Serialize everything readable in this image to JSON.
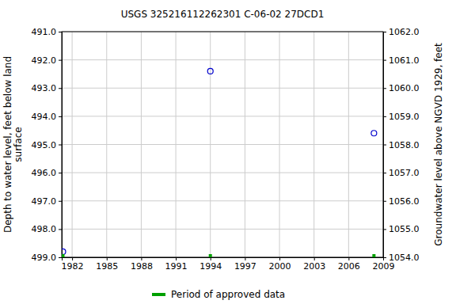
{
  "chart_data": {
    "type": "scatter",
    "title": "USGS 325216112262301 C-06-02 27DCD1",
    "y_label": "Depth to water level, feet below land\nsurface",
    "y2_label": "Groundwater level above NGVD 1929, feet",
    "x": [
      1981.2,
      1994.0,
      2008.2
    ],
    "series": [
      {
        "color": "#0000cc",
        "marker": "circle",
        "values": [
          498.8,
          492.4,
          494.6
        ]
      },
      {
        "name": "Period of approved data",
        "color": "#00a000",
        "marker": "square",
        "values": [
          499,
          499,
          499
        ]
      }
    ],
    "xlim": [
      1981.1,
      2009
    ],
    "xticks": [
      1982,
      1985,
      1988,
      1991,
      1994,
      1997,
      2000,
      2003,
      2006,
      2009
    ],
    "ylim": [
      499,
      491
    ],
    "yticks": [
      {
        "value": 491,
        "label": "491.0"
      },
      {
        "value": 492,
        "label": "492.0"
      },
      {
        "value": 493,
        "label": "493.0"
      },
      {
        "value": 494,
        "label": "494.0"
      },
      {
        "value": 495,
        "label": "495.0"
      },
      {
        "value": 496,
        "label": "496.0"
      },
      {
        "value": 497,
        "label": "497.0"
      },
      {
        "value": 498,
        "label": "498.0"
      },
      {
        "value": 499,
        "label": "499.0"
      }
    ],
    "y2lim": [
      1054,
      1062
    ],
    "y2ticks": [
      {
        "value": 1062,
        "label": "1062.0"
      },
      {
        "value": 1061,
        "label": "1061.0"
      },
      {
        "value": 1060,
        "label": "1060.0"
      },
      {
        "value": 1059,
        "label": "1059.0"
      },
      {
        "value": 1058,
        "label": "1058.0"
      },
      {
        "value": 1057,
        "label": "1057.0"
      },
      {
        "value": 1056,
        "label": "1056.0"
      },
      {
        "value": 1055,
        "label": "1055.0"
      },
      {
        "value": 1054,
        "label": "1054.0"
      }
    ],
    "grid": true
  }
}
